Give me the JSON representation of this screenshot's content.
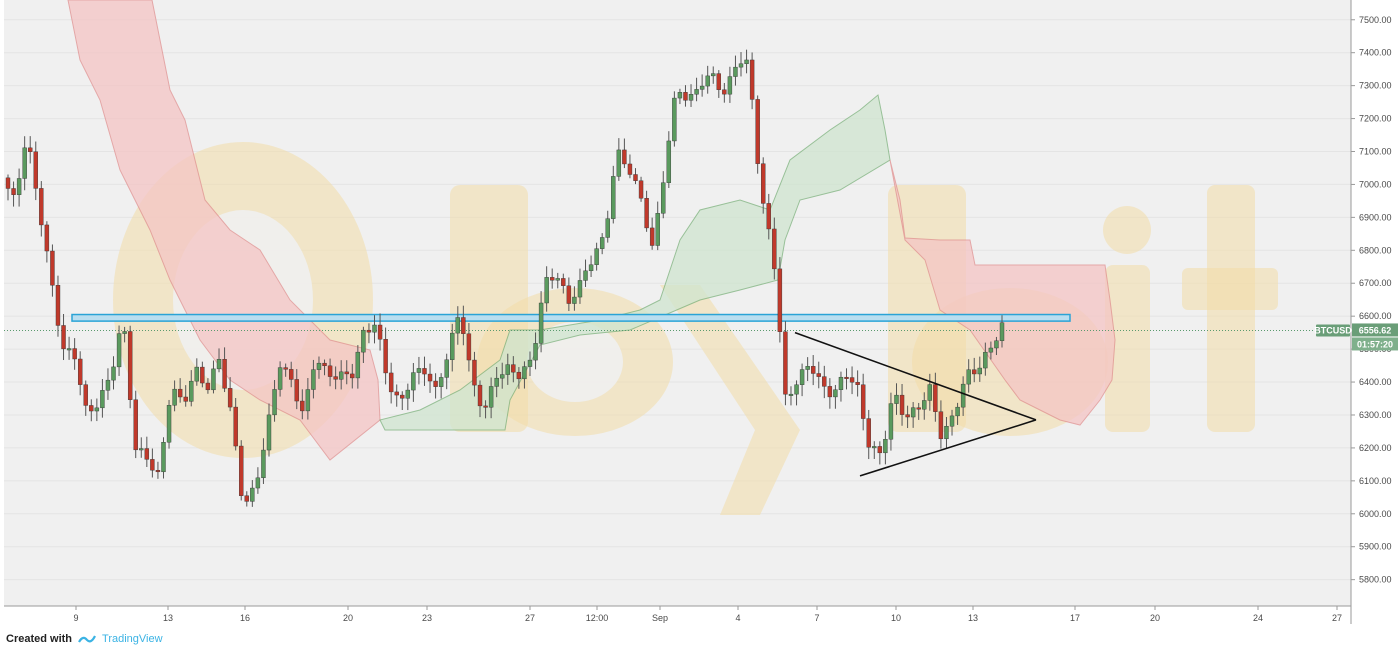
{
  "symbol": "BTCUSD",
  "colors": {
    "up": "#5a9a5e",
    "down": "#c0392b",
    "cloud_bull": "#cfe5cf",
    "cloud_bear": "#f4c5c5",
    "resistance": "#2aa3d6",
    "triangle": "#111111",
    "watermark": "#f2dca8",
    "badge": "#6a9e78",
    "plot_bg": "#f0f0f0"
  },
  "watermark": {
    "text": "Bybit"
  },
  "footer": {
    "created_with": "Created with",
    "brand": "TradingView"
  },
  "price_badge": {
    "value": "6556.62",
    "countdown": "01:57:20"
  },
  "chart_data": {
    "type": "candlestick",
    "title": "",
    "y_range": [
      5720,
      7560
    ],
    "y_ticks": [
      "5800.00",
      "5900.00",
      "6000.00",
      "6100.00",
      "6200.00",
      "6300.00",
      "6400.00",
      "6500.00",
      "6600.00",
      "6700.00",
      "6800.00",
      "6900.00",
      "7000.00",
      "7100.00",
      "7200.00",
      "7300.00",
      "7400.00",
      "7500.00"
    ],
    "x_ticks": [
      "9",
      "13",
      "16",
      "20",
      "23",
      "27",
      "12:00",
      "Sep",
      "4",
      "7",
      "10",
      "13",
      "17",
      "20",
      "24",
      "27"
    ],
    "last_price": 6556.62,
    "resistance_zone": [
      6585,
      6605
    ],
    "triangle": {
      "upper": [
        6550,
        6285
      ],
      "lower": [
        6115,
        6285
      ]
    },
    "keypoints": [
      7020,
      6950,
      7150,
      6940,
      6720,
      6500,
      6480,
      6300,
      6340,
      6420,
      6600,
      6200,
      6170,
      6110,
      6390,
      6330,
      6440,
      6380,
      6470,
      6300,
      6020,
      6080,
      6260,
      6460,
      6400,
      6300,
      6480,
      6420,
      6420,
      6420,
      6550,
      6580,
      6400,
      6330,
      6420,
      6440,
      6370,
      6490,
      6620,
      6400,
      6310,
      6420,
      6440,
      6420,
      6470,
      6700,
      6730,
      6640,
      6700,
      6780,
      6840,
      7100,
      7050,
      6960,
      6800,
      7050,
      7300,
      7250,
      7310,
      7330,
      7270,
      7380,
      7360,
      6960,
      6800,
      6350,
      6400,
      6460,
      6390,
      6360,
      6430,
      6380,
      6200,
      6180,
      6370,
      6290,
      6320,
      6380,
      6230,
      6300,
      6420,
      6440,
      6500,
      6570
    ]
  }
}
